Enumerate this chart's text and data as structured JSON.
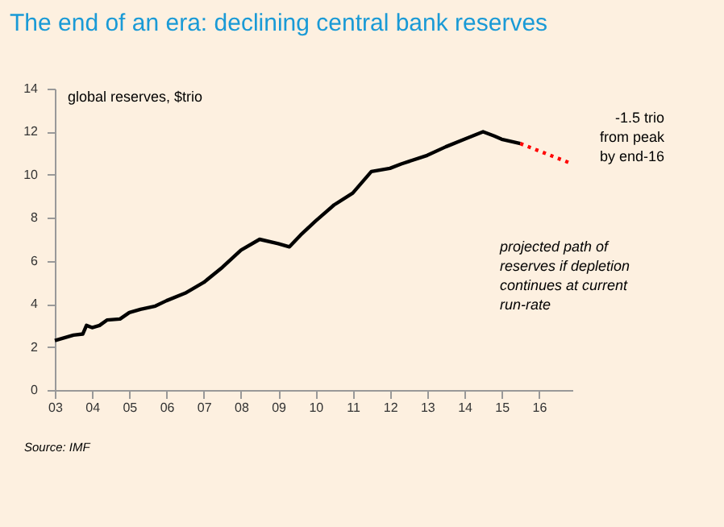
{
  "chart_data": {
    "type": "line",
    "title": "The end of an era: declining central bank reserves",
    "ylabel": "global reserves, $trio",
    "xlim": [
      2003,
      2016.9
    ],
    "ylim": [
      0,
      14
    ],
    "xticks": [
      {
        "value": 2003,
        "label": "03"
      },
      {
        "value": 2004,
        "label": "04"
      },
      {
        "value": 2005,
        "label": "05"
      },
      {
        "value": 2006,
        "label": "06"
      },
      {
        "value": 2007,
        "label": "07"
      },
      {
        "value": 2008,
        "label": "08"
      },
      {
        "value": 2009,
        "label": "09"
      },
      {
        "value": 2010,
        "label": "10"
      },
      {
        "value": 2011,
        "label": "11"
      },
      {
        "value": 2012,
        "label": "12"
      },
      {
        "value": 2013,
        "label": "13"
      },
      {
        "value": 2014,
        "label": "14"
      },
      {
        "value": 2015,
        "label": "15"
      },
      {
        "value": 2016,
        "label": "16"
      }
    ],
    "yticks": [
      0,
      2,
      4,
      6,
      8,
      10,
      12,
      14
    ],
    "grid": false,
    "series": [
      {
        "color": "#000000",
        "line_style": "solid",
        "x": [
          2003.0,
          2003.5,
          2003.75,
          2003.85,
          2004.0,
          2004.2,
          2004.4,
          2004.75,
          2005.0,
          2005.3,
          2005.7,
          2006.0,
          2006.5,
          2007.0,
          2007.5,
          2008.0,
          2008.5,
          2009.0,
          2009.3,
          2009.6,
          2010.0,
          2010.5,
          2011.0,
          2011.5,
          2012.0,
          2012.3,
          2013.0,
          2013.5,
          2014.0,
          2014.5,
          2014.8,
          2015.0,
          2015.5
        ],
        "values": [
          2.3,
          2.55,
          2.6,
          3.0,
          2.9,
          3.0,
          3.25,
          3.3,
          3.6,
          3.75,
          3.9,
          4.15,
          4.5,
          5.0,
          5.7,
          6.5,
          7.0,
          6.8,
          6.65,
          7.2,
          7.85,
          8.6,
          9.15,
          10.15,
          10.3,
          10.5,
          10.9,
          11.3,
          11.65,
          12.0,
          11.8,
          11.65,
          11.45
        ]
      },
      {
        "color": "#ff0000",
        "line_style": "dotted",
        "x": [
          2015.5,
          2016.9
        ],
        "values": [
          11.45,
          10.5
        ]
      }
    ],
    "annotations": [
      "-1.5 trio\nfrom peak\nby end-16",
      "projected path of\nreserves if depletion\ncontinues at current\nrun-rate",
      "Source: IMF"
    ]
  }
}
